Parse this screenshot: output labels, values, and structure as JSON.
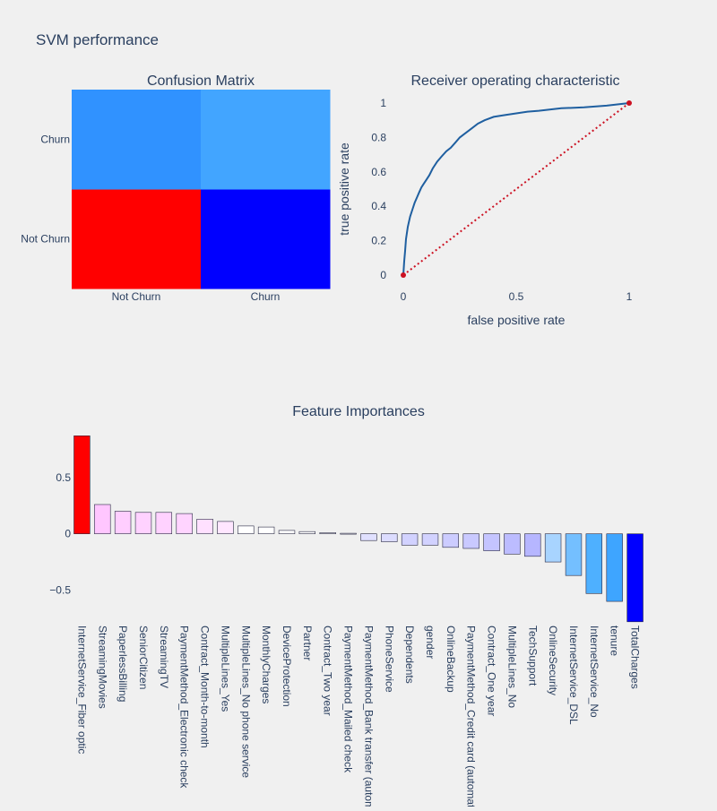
{
  "figure": {
    "title": "SVM performance"
  },
  "chart_data": [
    {
      "type": "heatmap",
      "title": "Confusion Matrix",
      "x_categories": [
        "Not Churn",
        "Churn"
      ],
      "y_categories": [
        "Not Churn",
        "Churn"
      ],
      "cells": [
        {
          "row": "Not Churn",
          "col": "Not Churn",
          "color": "#ff0000"
        },
        {
          "row": "Not Churn",
          "col": "Churn",
          "color": "#0000ff"
        },
        {
          "row": "Churn",
          "col": "Not Churn",
          "color": "#3092ff"
        },
        {
          "row": "Churn",
          "col": "Churn",
          "color": "#42a5ff"
        }
      ]
    },
    {
      "type": "line",
      "title": "Receiver operating characteristic",
      "xlabel": "false positive rate",
      "ylabel": "true positive rate",
      "xlim": [
        0,
        1
      ],
      "ylim": [
        0,
        1
      ],
      "xticks": [
        "0",
        "0.5",
        "1"
      ],
      "yticks": [
        "0",
        "0.2",
        "0.4",
        "0.6",
        "0.8",
        "1"
      ],
      "series": [
        {
          "color": "#1f5fa0",
          "style": "solid",
          "x": [
            0,
            0.004,
            0.008,
            0.012,
            0.02,
            0.03,
            0.04,
            0.05,
            0.06,
            0.07,
            0.08,
            0.09,
            0.1,
            0.115,
            0.13,
            0.15,
            0.17,
            0.19,
            0.21,
            0.23,
            0.25,
            0.27,
            0.3,
            0.33,
            0.36,
            0.4,
            0.45,
            0.5,
            0.55,
            0.6,
            0.7,
            0.8,
            0.9,
            1
          ],
          "y": [
            0,
            0.08,
            0.14,
            0.21,
            0.28,
            0.34,
            0.38,
            0.42,
            0.45,
            0.48,
            0.51,
            0.53,
            0.55,
            0.58,
            0.62,
            0.66,
            0.69,
            0.72,
            0.74,
            0.77,
            0.8,
            0.82,
            0.85,
            0.88,
            0.9,
            0.92,
            0.93,
            0.94,
            0.95,
            0.955,
            0.97,
            0.975,
            0.985,
            1
          ]
        },
        {
          "color": "#cc1122",
          "style": "dotted",
          "x": [
            0,
            1
          ],
          "y": [
            0,
            1
          ]
        }
      ]
    },
    {
      "type": "bar",
      "title": "Feature Importances",
      "ylim": [
        -0.75,
        0.92
      ],
      "yticks": [
        0.5,
        0,
        -0.5
      ],
      "ytick_labels": [
        "0.5",
        "0",
        "−0.5"
      ],
      "categories": [
        "InternetService_Fiber optic",
        "StreamingMovies",
        "PaperlessBilling",
        "SeniorCitizen",
        "StreamingTV",
        "PaymentMethod_Electronic check",
        "Contract_Month-to-month",
        "MultipleLines_Yes",
        "MultipleLines_No phone service",
        "MonthlyCharges",
        "DeviceProtection",
        "Partner",
        "Contract_Two year",
        "PaymentMethod_Mailed check",
        "PaymentMethod_Bank transfer (automatic)",
        "PhoneService",
        "Dependents",
        "gender",
        "OnlineBackup",
        "PaymentMethod_Credit card (automatic)",
        "Contract_One year",
        "MultipleLines_No",
        "TechSupport",
        "OnlineSecurity",
        "InternetService_DSL",
        "InternetService_No",
        "tenure",
        "TotalCharges"
      ],
      "values": [
        0.87,
        0.26,
        0.2,
        0.19,
        0.19,
        0.18,
        0.13,
        0.11,
        0.07,
        0.06,
        0.03,
        0.02,
        0.01,
        0.005,
        -0.06,
        -0.07,
        -0.1,
        -0.1,
        -0.12,
        -0.13,
        -0.15,
        -0.18,
        -0.2,
        -0.25,
        -0.37,
        -0.53,
        -0.6,
        -0.78
      ],
      "colors": [
        "#ff0000",
        "#ffc6ff",
        "#ffceff",
        "#ffd2ff",
        "#ffd2ff",
        "#ffd4ff",
        "#ffe0ff",
        "#ffe6ff",
        "#ffffff",
        "#ffffff",
        "#ffffff",
        "#ffffff",
        "#ffffff",
        "#ffffff",
        "#e0e0ff",
        "#dcdcff",
        "#d2d2ff",
        "#d2d2ff",
        "#ccccff",
        "#c9c9ff",
        "#c4c4ff",
        "#bcbcff",
        "#b6b6ff",
        "#a8d4ff",
        "#74bfff",
        "#4eb0ff",
        "#3ea5ff",
        "#0000ff"
      ]
    }
  ]
}
